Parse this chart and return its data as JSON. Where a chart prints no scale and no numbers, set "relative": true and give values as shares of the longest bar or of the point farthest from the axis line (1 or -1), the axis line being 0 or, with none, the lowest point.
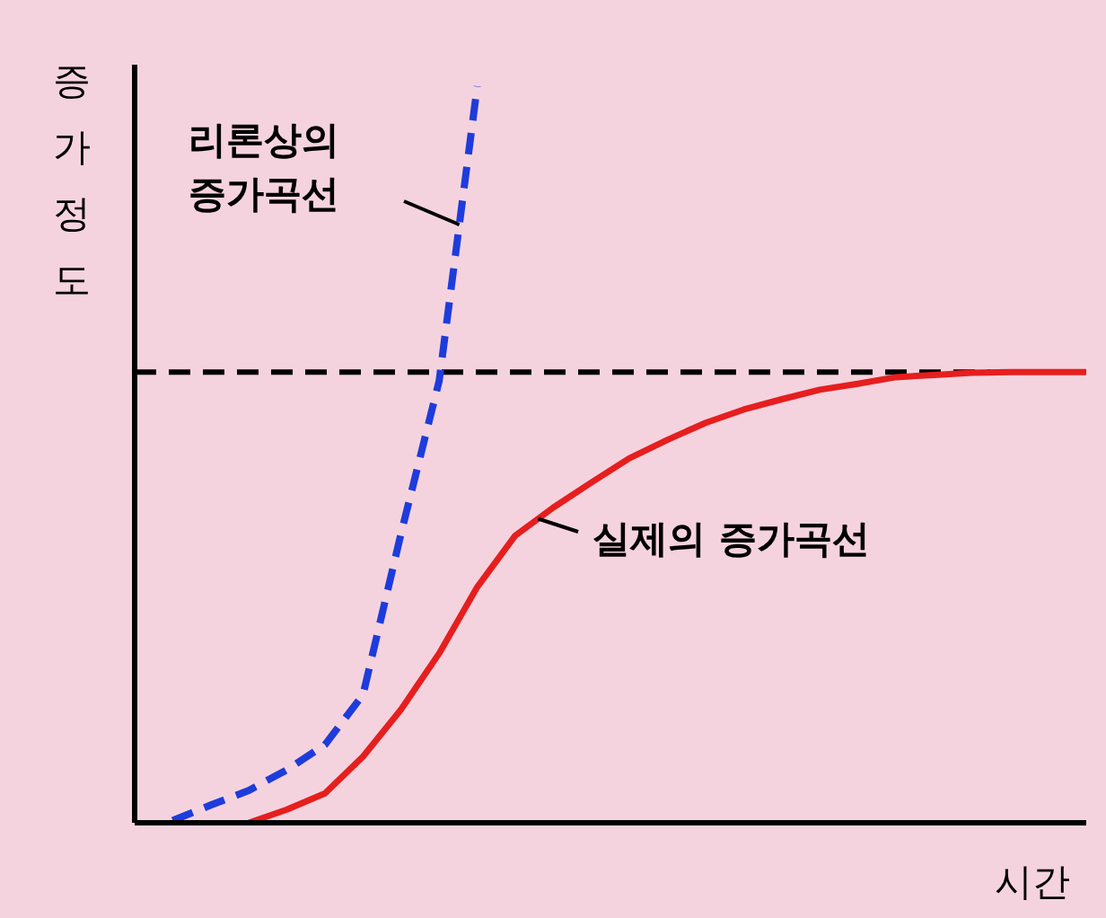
{
  "chart_data": {
    "type": "line",
    "relative": true,
    "xlabel": "시간",
    "ylabel": "증가정도",
    "categories": [
      null,
      null,
      null,
      null,
      null,
      null,
      null,
      null,
      null,
      null,
      null,
      null,
      null,
      null,
      null,
      null,
      null,
      null,
      null,
      null,
      null,
      null,
      null,
      null,
      null,
      null
    ],
    "series": [
      {
        "color": "#1e3cdc",
        "line_style": "dashed",
        "values": [
          null,
          0.003,
          0.024,
          0.044,
          0.072,
          0.106,
          0.174,
          0.393,
          0.6,
          1.0,
          null,
          null,
          null,
          null,
          null,
          null,
          null,
          null,
          null,
          null,
          null,
          null,
          null,
          null,
          null,
          null
        ]
      },
      {
        "color": "#e61e1e",
        "line_style": "solid",
        "values": [
          null,
          null,
          null,
          0,
          0.018,
          0.04,
          0.09,
          0.154,
          0.23,
          0.32,
          0.39,
          0.428,
          0.462,
          0.495,
          0.52,
          0.543,
          0.561,
          0.575,
          0.588,
          0.596,
          0.605,
          0.608,
          0.611,
          0.612,
          0.612,
          0.612
        ]
      }
    ],
    "annotations": [
      "리론상의\n증가곡선",
      "실제의 증가곡선"
    ],
    "ref_lines": [
      {
        "axis": "y",
        "value": 0.612,
        "color": "#000000",
        "line_style": "dashed"
      }
    ],
    "marker": "none"
  }
}
